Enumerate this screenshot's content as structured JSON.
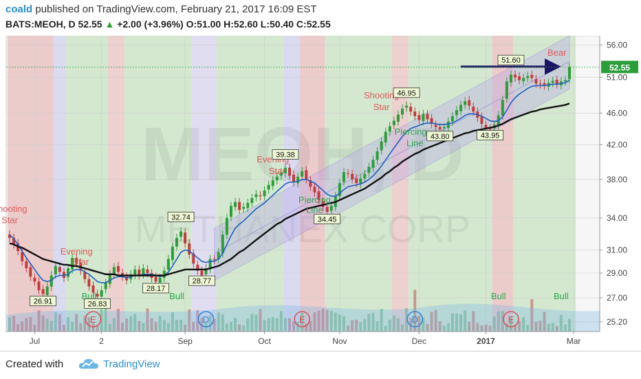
{
  "header": {
    "user": "coald",
    "published": "published on TradingView.com, February 21, 2017 16:09 EST",
    "symbol": "BATS:MEOH, D",
    "last": "52.55",
    "change": "+2.00 (+3.96%)",
    "ohlc": "O:51.00 H:52.60 L:50.40 C:52.55"
  },
  "footer": {
    "created": "Created with",
    "brand": "TradingView"
  },
  "watermark": {
    "ticker": "MEOH, D",
    "name": "METHANEX CORP"
  },
  "colors": {
    "up": "#2b9e3a",
    "down": "#c43b3b",
    "ema": "#1f5fbf",
    "sma": "#111111",
    "channel": "#7b6fd6",
    "arrow": "#1b1464",
    "bull": "#2fa84f",
    "bear": "#e05a5a"
  },
  "chart_data": {
    "type": "candlestick",
    "title": "BATS:MEOH, D",
    "x_axis": {
      "ticks": [
        "Jul",
        "2",
        "Sep",
        "Oct",
        "Nov",
        "Dec",
        "2017",
        "Mar"
      ]
    },
    "y_axis": {
      "scale": "log",
      "ticks": [
        25.2,
        27.0,
        29.0,
        31.0,
        34.0,
        38.0,
        42.0,
        46.0,
        51.0,
        56.0
      ],
      "range": [
        24.5,
        57.5
      ]
    },
    "last_price": 52.55,
    "close_series": [
      32.1,
      31.5,
      30.9,
      30.0,
      29.4,
      28.7,
      28.3,
      27.6,
      27.3,
      27.9,
      28.8,
      29.6,
      29.1,
      28.6,
      29.4,
      30.3,
      29.8,
      29.2,
      28.5,
      27.9,
      27.4,
      27.1,
      27.6,
      28.2,
      28.9,
      29.5,
      29.1,
      28.7,
      28.4,
      28.9,
      29.3,
      28.8,
      29.4,
      29.0,
      28.6,
      28.3,
      28.6,
      29.2,
      30.2,
      31.3,
      32.1,
      32.7,
      31.6,
      30.6,
      29.8,
      29.2,
      28.8,
      29.4,
      30.2,
      30.1,
      30.8,
      32.4,
      34.0,
      35.2,
      35.6,
      34.8,
      35.1,
      35.5,
      36.0,
      36.4,
      36.2,
      36.8,
      37.4,
      37.9,
      38.3,
      38.8,
      39.3,
      38.4,
      37.7,
      38.3,
      38.9,
      38.0,
      37.2,
      36.6,
      35.8,
      35.1,
      34.6,
      35.2,
      36.2,
      37.6,
      38.8,
      38.6,
      38.0,
      37.6,
      38.1,
      38.6,
      39.4,
      40.2,
      41.2,
      42.4,
      43.6,
      44.3,
      45.0,
      45.8,
      46.6,
      47.0,
      46.2,
      45.6,
      45.1,
      45.9,
      45.2,
      44.6,
      44.2,
      43.9,
      44.2,
      44.9,
      45.6,
      46.4,
      47.1,
      47.6,
      47.0,
      46.2,
      45.4,
      44.6,
      44.0,
      43.9,
      44.5,
      45.7,
      47.8,
      50.4,
      51.4,
      51.0,
      50.6,
      50.9,
      51.2,
      50.9,
      50.1,
      50.0,
      49.8,
      50.2,
      50.5,
      50.0,
      50.4,
      50.6,
      52.55
    ],
    "ema_series": [
      32.4,
      32.0,
      31.5,
      30.9,
      30.3,
      29.8,
      29.3,
      28.8,
      28.4,
      28.3,
      28.4,
      28.7,
      28.8,
      28.8,
      28.9,
      29.2,
      29.3,
      29.3,
      29.1,
      28.9,
      28.6,
      28.3,
      28.2,
      28.2,
      28.4,
      28.6,
      28.7,
      28.7,
      28.6,
      28.7,
      28.8,
      28.8,
      28.9,
      28.9,
      28.9,
      28.8,
      28.7,
      28.8,
      29.1,
      29.6,
      30.2,
      30.8,
      31.0,
      30.9,
      30.6,
      30.3,
      30.0,
      29.9,
      30.0,
      30.0,
      30.2,
      30.7,
      31.5,
      32.3,
      33.0,
      33.4,
      33.7,
      34.1,
      34.5,
      34.9,
      35.2,
      35.5,
      35.9,
      36.3,
      36.7,
      37.1,
      37.5,
      37.7,
      37.7,
      37.8,
      38.0,
      38.0,
      37.8,
      37.6,
      37.2,
      36.8,
      36.4,
      36.2,
      36.2,
      36.5,
      36.9,
      37.2,
      37.3,
      37.4,
      37.5,
      37.7,
      38.0,
      38.4,
      38.9,
      39.5,
      40.2,
      40.9,
      41.6,
      42.3,
      43.0,
      43.6,
      44.0,
      44.2,
      44.4,
      44.6,
      44.7,
      44.7,
      44.6,
      44.5,
      44.5,
      44.6,
      44.7,
      45.0,
      45.3,
      45.7,
      45.9,
      45.9,
      45.8,
      45.6,
      45.3,
      45.0,
      44.9,
      45.0,
      45.5,
      46.4,
      47.4,
      48.1,
      48.6,
      49.0,
      49.4,
      49.7,
      49.8,
      49.8,
      49.8,
      49.9,
      50.0,
      50.0,
      50.1,
      50.2,
      50.6
    ],
    "sma_series": [
      31.6,
      31.5,
      31.3,
      31.2,
      31.0,
      30.8,
      30.6,
      30.4,
      30.2,
      30.1,
      30.0,
      29.9,
      29.8,
      29.7,
      29.7,
      29.6,
      29.6,
      29.5,
      29.4,
      29.3,
      29.2,
      29.1,
      29.0,
      28.9,
      28.9,
      28.9,
      28.8,
      28.8,
      28.8,
      28.8,
      28.8,
      28.8,
      28.8,
      28.8,
      28.8,
      28.8,
      28.8,
      28.8,
      28.9,
      29.0,
      29.1,
      29.2,
      29.3,
      29.3,
      29.3,
      29.3,
      29.3,
      29.3,
      29.4,
      29.5,
      29.6,
      29.8,
      30.0,
      30.2,
      30.5,
      30.8,
      31.0,
      31.3,
      31.6,
      31.9,
      32.2,
      32.5,
      32.8,
      33.1,
      33.4,
      33.6,
      33.9,
      34.1,
      34.3,
      34.5,
      34.7,
      34.9,
      35.0,
      35.1,
      35.2,
      35.3,
      35.4,
      35.5,
      35.6,
      35.8,
      36.0,
      36.2,
      36.4,
      36.6,
      36.8,
      37.0,
      37.3,
      37.6,
      37.9,
      38.2,
      38.6,
      38.9,
      39.3,
      39.6,
      40.0,
      40.3,
      40.6,
      40.9,
      41.1,
      41.4,
      41.6,
      41.8,
      42.0,
      42.2,
      42.4,
      42.6,
      42.8,
      43.0,
      43.2,
      43.4,
      43.5,
      43.7,
      43.8,
      43.9,
      44.0,
      44.1,
      44.2,
      44.4,
      44.6,
      44.9,
      45.2,
      45.4,
      45.6,
      45.8,
      46.0,
      46.2,
      46.3,
      46.5,
      46.6,
      46.7,
      46.8,
      46.9,
      47.0,
      47.1,
      47.3
    ],
    "price_labels": [
      {
        "text": "26.91",
        "bar": 8,
        "price": 26.6
      },
      {
        "text": "26.83",
        "bar": 21,
        "price": 26.4
      },
      {
        "text": "28.17",
        "bar": 35,
        "price": 27.6
      },
      {
        "text": "32.74",
        "bar": 41,
        "price": 33.9
      },
      {
        "text": "28.77",
        "bar": 46,
        "price": 28.2
      },
      {
        "text": "39.38",
        "bar": 66,
        "price": 40.6
      },
      {
        "text": "34.45",
        "bar": 76,
        "price": 33.7
      },
      {
        "text": "46.95",
        "bar": 95,
        "price": 48.5
      },
      {
        "text": "43.80",
        "bar": 103,
        "price": 42.8
      },
      {
        "text": "43.95",
        "bar": 115,
        "price": 42.9
      },
      {
        "text": "51.60",
        "bar": 120,
        "price": 53.3
      }
    ],
    "annotations": [
      {
        "text": "Shooting",
        "bar": 0,
        "price": 34.6,
        "color": "#e05a5a"
      },
      {
        "text": "Star",
        "bar": 0,
        "price": 33.5,
        "color": "#e05a5a"
      },
      {
        "text": "Evening",
        "bar": 16,
        "price": 30.6,
        "color": "#e05a5a"
      },
      {
        "text": "Star",
        "bar": 17,
        "price": 29.7,
        "color": "#e05a5a"
      },
      {
        "text": "Evening",
        "bar": 63,
        "price": 39.9,
        "color": "#e05a5a"
      },
      {
        "text": "Star",
        "bar": 64,
        "price": 38.6,
        "color": "#e05a5a"
      },
      {
        "text": "Shooting",
        "bar": 89,
        "price": 48.0,
        "color": "#e05a5a"
      },
      {
        "text": "Star",
        "bar": 89,
        "price": 46.4,
        "color": "#e05a5a"
      },
      {
        "text": "Bear",
        "bar": 131,
        "price": 54.3,
        "color": "#e05a5a"
      },
      {
        "text": "Piercing",
        "bar": 73,
        "price": 35.5,
        "color": "#2fa84f"
      },
      {
        "text": "Line",
        "bar": 73,
        "price": 34.5,
        "color": "#2fa84f"
      },
      {
        "text": "Piercing",
        "bar": 96,
        "price": 43.2,
        "color": "#2fa84f"
      },
      {
        "text": "Line",
        "bar": 97,
        "price": 41.8,
        "color": "#2fa84f"
      },
      {
        "text": "Bull",
        "bar": 19,
        "price": 26.9,
        "color": "#2fa84f"
      },
      {
        "text": "Bull",
        "bar": 40,
        "price": 26.9,
        "color": "#2fa84f"
      },
      {
        "text": "Bull",
        "bar": 117,
        "price": 26.9,
        "color": "#2fa84f"
      },
      {
        "text": "Bull",
        "bar": 132,
        "price": 26.9,
        "color": "#2fa84f"
      }
    ],
    "event_markers": [
      {
        "letter": "E",
        "bar": 20
      },
      {
        "letter": "D",
        "bar": 47
      },
      {
        "letter": "E",
        "bar": 70
      },
      {
        "letter": "D",
        "bar": 97
      },
      {
        "letter": "E",
        "bar": 120
      }
    ],
    "channel": {
      "upper": [
        [
          49,
          33.0
        ],
        [
          134,
          57.5
        ]
      ],
      "lower": [
        [
          49,
          28.4
        ],
        [
          134,
          49.3
        ]
      ]
    },
    "arrow": {
      "from": [
        108,
        52.6
      ],
      "to": [
        131,
        52.6
      ]
    },
    "legend": "none"
  }
}
